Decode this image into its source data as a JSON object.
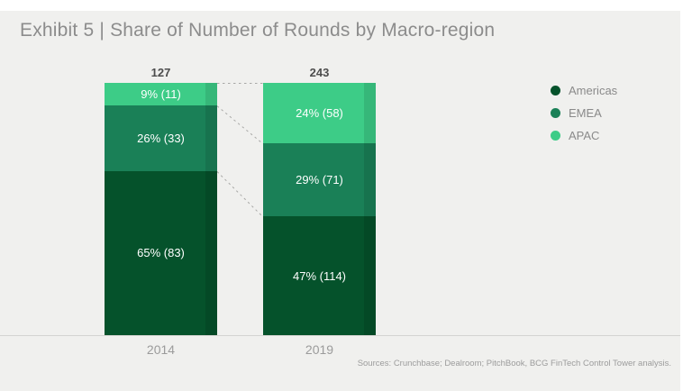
{
  "title": "Exhibit 5 | Share of Number of Rounds by Macro-region",
  "source_note": "Sources: Crunchbase; Dealroom; PitchBook, BCG FinTech Control Tower analysis.",
  "colors": {
    "background": "#f0f0ee",
    "page_margin": "#ffffff",
    "americas": "#05522b",
    "emea": "#1a8057",
    "apac": "#3dcc87",
    "axis_line": "#d4d4d2",
    "connector": "#a8a8a6",
    "title_text": "#8c8c8c",
    "total_text": "#4d4d4d",
    "tick_text": "#9b9b9b"
  },
  "legend": {
    "position": "right",
    "items": [
      {
        "label": "Americas",
        "color": "#05522b"
      },
      {
        "label": "EMEA",
        "color": "#1a8057"
      },
      {
        "label": "APAC",
        "color": "#3dcc87"
      }
    ]
  },
  "chart_data": {
    "type": "bar",
    "subtype": "100%-stacked-column",
    "title": "Exhibit 5 | Share of Number of Rounds by Macro-region",
    "categories": [
      "2014",
      "2019"
    ],
    "totals": [
      127,
      243
    ],
    "series": [
      {
        "name": "Americas",
        "values": [
          83,
          114
        ],
        "share_pct": [
          65,
          47
        ],
        "color": "#05522b"
      },
      {
        "name": "EMEA",
        "values": [
          33,
          71
        ],
        "share_pct": [
          26,
          29
        ],
        "color": "#1a8057"
      },
      {
        "name": "APAC",
        "values": [
          11,
          58
        ],
        "share_pct": [
          9,
          24
        ],
        "color": "#3dcc87"
      }
    ],
    "columns": [
      {
        "category": "2014",
        "total_label": "127",
        "segments": [
          {
            "series": "APAC",
            "label": "9% (11)",
            "percent": 9,
            "value": 11,
            "color": "#3dcc87"
          },
          {
            "series": "EMEA",
            "label": "26% (33)",
            "percent": 26,
            "value": 33,
            "color": "#1a8057"
          },
          {
            "series": "Americas",
            "label": "65% (83)",
            "percent": 65,
            "value": 83,
            "color": "#05522b"
          }
        ]
      },
      {
        "category": "2019",
        "total_label": "243",
        "segments": [
          {
            "series": "APAC",
            "label": "24% (58)",
            "percent": 24,
            "value": 58,
            "color": "#3dcc87"
          },
          {
            "series": "EMEA",
            "label": "29% (71)",
            "percent": 29,
            "value": 71,
            "color": "#1a8057"
          },
          {
            "series": "Americas",
            "label": "47% (114)",
            "percent": 47,
            "value": 114,
            "color": "#05522b"
          }
        ]
      }
    ],
    "annotations": "dashed connector lines link matching segment boundaries between the two columns",
    "gridlines": false,
    "legend_entries": [
      "Americas",
      "EMEA",
      "APAC"
    ],
    "xlabel": "",
    "ylabel": ""
  }
}
